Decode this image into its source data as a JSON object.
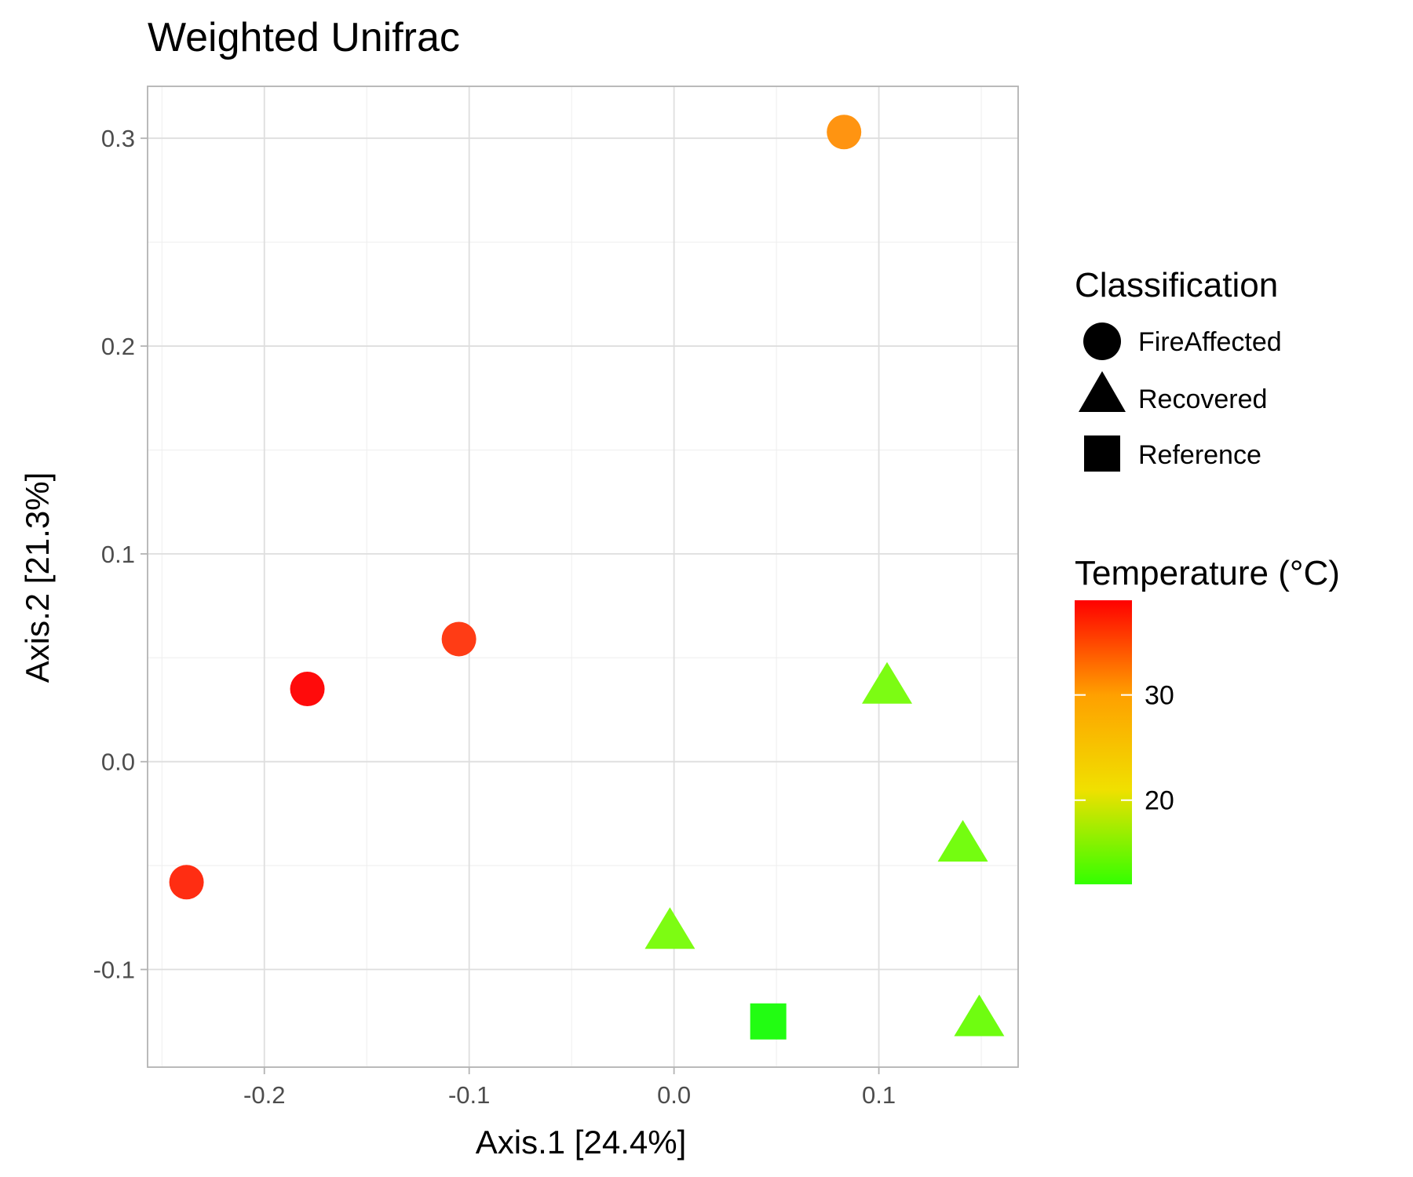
{
  "chart_data": {
    "type": "scatter",
    "title": "Weighted Unifrac",
    "xlabel": "Axis.1   [24.4%]",
    "ylabel": "Axis.2   [21.3%]",
    "xlim": [
      -0.257,
      0.168
    ],
    "ylim": [
      -0.147,
      0.325
    ],
    "x_ticks": [
      -0.2,
      -0.1,
      0.0,
      0.1
    ],
    "x_tick_labels": [
      "-0.2",
      "-0.1",
      "0.0",
      "0.1"
    ],
    "y_ticks": [
      -0.1,
      0.0,
      0.1,
      0.2,
      0.3
    ],
    "y_tick_labels": [
      "-0.1",
      "0.0",
      "0.1",
      "0.2",
      "0.3"
    ],
    "grid": true,
    "legend_position": "right",
    "shape_legend": {
      "title": "Classification",
      "items": [
        {
          "label": "FireAffected",
          "shape": "circle"
        },
        {
          "label": "Recovered",
          "shape": "triangle"
        },
        {
          "label": "Reference",
          "shape": "square"
        }
      ]
    },
    "color_legend": {
      "title": "Temperature (°C)",
      "range": [
        12,
        39
      ],
      "ticks": [
        20,
        30
      ],
      "tick_labels": [
        "20",
        "30"
      ],
      "colors": [
        "#33ff00",
        "#f0e000",
        "#ffa000",
        "#ff0000"
      ]
    },
    "points": [
      {
        "x": 0.083,
        "y": 0.303,
        "classification": "FireAffected",
        "temperature": 26,
        "color": "#ff9411"
      },
      {
        "x": -0.105,
        "y": 0.059,
        "classification": "FireAffected",
        "temperature": 34,
        "color": "#ff3c15"
      },
      {
        "x": -0.179,
        "y": 0.035,
        "classification": "FireAffected",
        "temperature": 38,
        "color": "#ff0b0b"
      },
      {
        "x": -0.238,
        "y": -0.058,
        "classification": "FireAffected",
        "temperature": 35,
        "color": "#ff2d12"
      },
      {
        "x": 0.104,
        "y": 0.037,
        "classification": "Recovered",
        "temperature": 14,
        "color": "#7cfc13"
      },
      {
        "x": 0.141,
        "y": -0.039,
        "classification": "Recovered",
        "temperature": 14,
        "color": "#74fd10"
      },
      {
        "x": -0.002,
        "y": -0.081,
        "classification": "Recovered",
        "temperature": 14,
        "color": "#7dfc12"
      },
      {
        "x": 0.149,
        "y": -0.123,
        "classification": "Recovered",
        "temperature": 14,
        "color": "#6ffd10"
      },
      {
        "x": 0.046,
        "y": -0.125,
        "classification": "Reference",
        "temperature": 12,
        "color": "#22fd12"
      }
    ]
  }
}
